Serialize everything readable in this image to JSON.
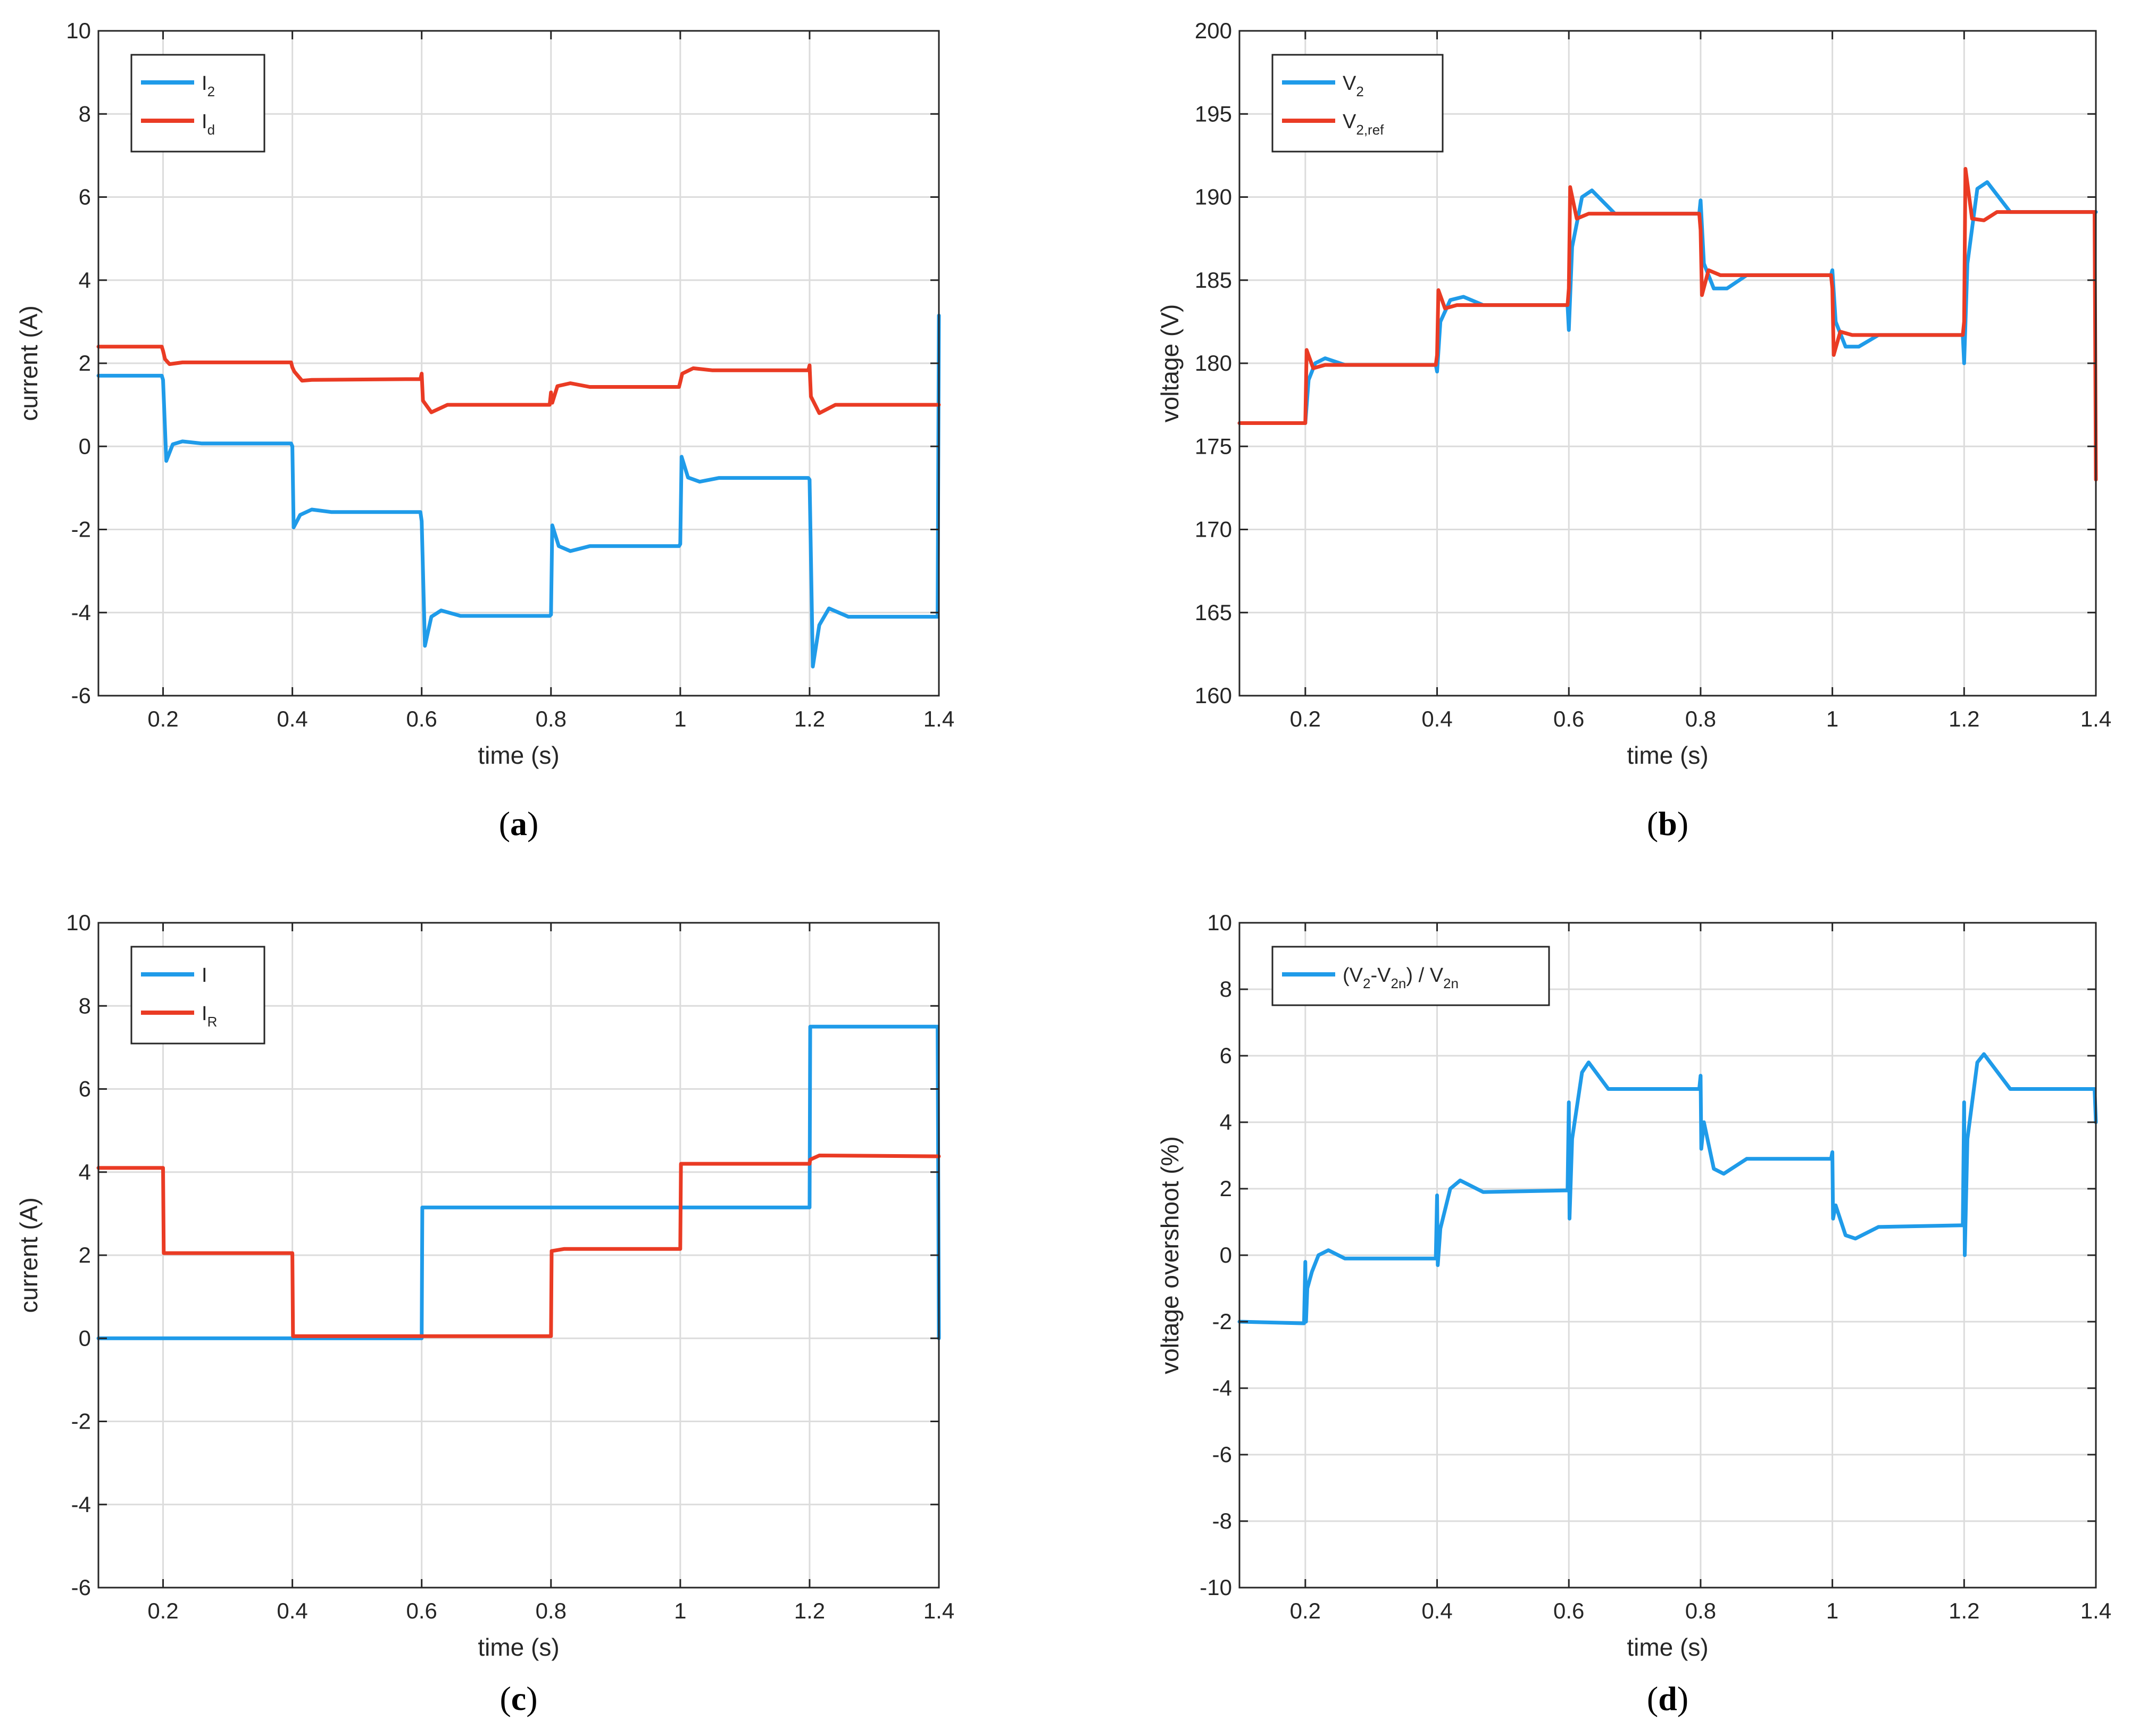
{
  "colors": {
    "blue": "#1f9be9",
    "red": "#ea3b24"
  },
  "chart_data": [
    {
      "id": "a",
      "type": "line",
      "panel_label": {
        "open": "(",
        "letter": "a",
        "close": ")"
      },
      "xlabel": "time (s)",
      "ylabel": "current (A)",
      "xlim": [
        0.1,
        1.4
      ],
      "ylim": [
        -6,
        10
      ],
      "xticks": [
        0.2,
        0.4,
        0.6,
        0.8,
        1,
        1.2,
        1.4
      ],
      "xtick_labels": [
        "0.2",
        "0.4",
        "0.6",
        "0.8",
        "1",
        "1.2",
        "1.4"
      ],
      "yticks": [
        -6,
        -4,
        -2,
        0,
        2,
        4,
        6,
        8,
        10
      ],
      "ytick_labels": [
        "-6",
        "-4",
        "-2",
        "0",
        "2",
        "4",
        "6",
        "8",
        "10"
      ],
      "grid": true,
      "legend_position": "top-left",
      "series": [
        {
          "name": "I2",
          "label": "I",
          "sub": "2",
          "color": "blue",
          "points": [
            [
              0.1,
              1.7
            ],
            [
              0.198,
              1.7
            ],
            [
              0.2,
              1.6
            ],
            [
              0.205,
              -0.35
            ],
            [
              0.215,
              0.05
            ],
            [
              0.23,
              0.12
            ],
            [
              0.26,
              0.07
            ],
            [
              0.398,
              0.07
            ],
            [
              0.4,
              0.0
            ],
            [
              0.402,
              -1.95
            ],
            [
              0.412,
              -1.65
            ],
            [
              0.43,
              -1.52
            ],
            [
              0.46,
              -1.58
            ],
            [
              0.598,
              -1.58
            ],
            [
              0.6,
              -1.8
            ],
            [
              0.605,
              -4.8
            ],
            [
              0.615,
              -4.1
            ],
            [
              0.63,
              -3.95
            ],
            [
              0.66,
              -4.08
            ],
            [
              0.798,
              -4.08
            ],
            [
              0.8,
              -4.05
            ],
            [
              0.802,
              -1.9
            ],
            [
              0.812,
              -2.4
            ],
            [
              0.83,
              -2.52
            ],
            [
              0.86,
              -2.4
            ],
            [
              0.998,
              -2.4
            ],
            [
              1.0,
              -2.35
            ],
            [
              1.002,
              -0.25
            ],
            [
              1.012,
              -0.75
            ],
            [
              1.03,
              -0.85
            ],
            [
              1.06,
              -0.76
            ],
            [
              1.198,
              -0.76
            ],
            [
              1.2,
              -0.8
            ],
            [
              1.205,
              -5.3
            ],
            [
              1.215,
              -4.3
            ],
            [
              1.23,
              -3.9
            ],
            [
              1.26,
              -4.1
            ],
            [
              1.398,
              -4.1
            ],
            [
              1.4,
              3.15
            ]
          ]
        },
        {
          "name": "Id",
          "label": "I",
          "sub": "d",
          "color": "red",
          "points": [
            [
              0.1,
              2.4
            ],
            [
              0.198,
              2.4
            ],
            [
              0.2,
              2.3
            ],
            [
              0.203,
              2.1
            ],
            [
              0.21,
              1.98
            ],
            [
              0.23,
              2.02
            ],
            [
              0.398,
              2.02
            ],
            [
              0.4,
              1.9
            ],
            [
              0.403,
              1.8
            ],
            [
              0.415,
              1.58
            ],
            [
              0.43,
              1.6
            ],
            [
              0.598,
              1.62
            ],
            [
              0.6,
              1.75
            ],
            [
              0.602,
              1.1
            ],
            [
              0.615,
              0.82
            ],
            [
              0.64,
              1.0
            ],
            [
              0.798,
              1.0
            ],
            [
              0.8,
              1.3
            ],
            [
              0.802,
              1.05
            ],
            [
              0.81,
              1.45
            ],
            [
              0.83,
              1.52
            ],
            [
              0.86,
              1.43
            ],
            [
              0.998,
              1.43
            ],
            [
              1.0,
              1.55
            ],
            [
              1.003,
              1.75
            ],
            [
              1.02,
              1.88
            ],
            [
              1.05,
              1.83
            ],
            [
              1.198,
              1.83
            ],
            [
              1.2,
              1.95
            ],
            [
              1.202,
              1.2
            ],
            [
              1.215,
              0.8
            ],
            [
              1.24,
              1.0
            ],
            [
              1.4,
              1.0
            ]
          ]
        }
      ]
    },
    {
      "id": "b",
      "type": "line",
      "panel_label": {
        "open": "(",
        "letter": "b",
        "close": ")"
      },
      "xlabel": "time (s)",
      "ylabel": "voltage (V)",
      "xlim": [
        0.1,
        1.4
      ],
      "ylim": [
        160,
        200
      ],
      "xticks": [
        0.2,
        0.4,
        0.6,
        0.8,
        1,
        1.2,
        1.4
      ],
      "xtick_labels": [
        "0.2",
        "0.4",
        "0.6",
        "0.8",
        "1",
        "1.2",
        "1.4"
      ],
      "yticks": [
        160,
        165,
        170,
        175,
        180,
        185,
        190,
        195,
        200
      ],
      "ytick_labels": [
        "160",
        "165",
        "170",
        "175",
        "180",
        "185",
        "190",
        "195",
        "200"
      ],
      "grid": true,
      "legend_position": "top-left",
      "series": [
        {
          "name": "V2",
          "label": "V",
          "sub": "2",
          "color": "blue",
          "points": [
            [
              0.1,
              176.4
            ],
            [
              0.198,
              176.4
            ],
            [
              0.2,
              176.4
            ],
            [
              0.205,
              179.0
            ],
            [
              0.215,
              180.0
            ],
            [
              0.23,
              180.3
            ],
            [
              0.26,
              179.9
            ],
            [
              0.398,
              179.9
            ],
            [
              0.4,
              179.5
            ],
            [
              0.405,
              182.5
            ],
            [
              0.42,
              183.8
            ],
            [
              0.44,
              184.0
            ],
            [
              0.47,
              183.5
            ],
            [
              0.598,
              183.5
            ],
            [
              0.6,
              182.0
            ],
            [
              0.605,
              187.0
            ],
            [
              0.62,
              190.0
            ],
            [
              0.635,
              190.4
            ],
            [
              0.67,
              189.0
            ],
            [
              0.798,
              189.0
            ],
            [
              0.8,
              189.8
            ],
            [
              0.805,
              186.0
            ],
            [
              0.82,
              184.5
            ],
            [
              0.84,
              184.5
            ],
            [
              0.87,
              185.3
            ],
            [
              0.998,
              185.3
            ],
            [
              1.0,
              185.6
            ],
            [
              1.005,
              182.5
            ],
            [
              1.02,
              181.0
            ],
            [
              1.04,
              181.0
            ],
            [
              1.07,
              181.7
            ],
            [
              1.198,
              181.7
            ],
            [
              1.2,
              180.0
            ],
            [
              1.205,
              186.0
            ],
            [
              1.22,
              190.5
            ],
            [
              1.235,
              190.9
            ],
            [
              1.27,
              189.1
            ],
            [
              1.4,
              189.1
            ]
          ]
        },
        {
          "name": "V2ref",
          "label": "V",
          "sub": "2,ref",
          "color": "red",
          "points": [
            [
              0.1,
              176.4
            ],
            [
              0.198,
              176.4
            ],
            [
              0.2,
              176.4
            ],
            [
              0.202,
              180.8
            ],
            [
              0.212,
              179.7
            ],
            [
              0.23,
              179.9
            ],
            [
              0.398,
              179.9
            ],
            [
              0.4,
              180.5
            ],
            [
              0.402,
              184.4
            ],
            [
              0.412,
              183.3
            ],
            [
              0.43,
              183.5
            ],
            [
              0.598,
              183.5
            ],
            [
              0.6,
              184.5
            ],
            [
              0.602,
              190.6
            ],
            [
              0.612,
              188.7
            ],
            [
              0.63,
              189.0
            ],
            [
              0.798,
              189.0
            ],
            [
              0.8,
              188.0
            ],
            [
              0.802,
              184.1
            ],
            [
              0.812,
              185.6
            ],
            [
              0.83,
              185.3
            ],
            [
              0.998,
              185.3
            ],
            [
              1.0,
              184.5
            ],
            [
              1.002,
              180.5
            ],
            [
              1.012,
              181.9
            ],
            [
              1.03,
              181.7
            ],
            [
              1.198,
              181.7
            ],
            [
              1.2,
              182.5
            ],
            [
              1.202,
              191.7
            ],
            [
              1.212,
              188.7
            ],
            [
              1.23,
              188.6
            ],
            [
              1.25,
              189.1
            ],
            [
              1.398,
              189.1
            ],
            [
              1.4,
              173.0
            ]
          ]
        }
      ]
    },
    {
      "id": "c",
      "type": "line",
      "panel_label": {
        "open": "(",
        "letter": "c",
        "close": ")"
      },
      "xlabel": "time (s)",
      "ylabel": "current (A)",
      "xlim": [
        0.1,
        1.4
      ],
      "ylim": [
        -6,
        10
      ],
      "xticks": [
        0.2,
        0.4,
        0.6,
        0.8,
        1,
        1.2,
        1.4
      ],
      "xtick_labels": [
        "0.2",
        "0.4",
        "0.6",
        "0.8",
        "1",
        "1.2",
        "1.4"
      ],
      "yticks": [
        -6,
        -4,
        -2,
        0,
        2,
        4,
        6,
        8,
        10
      ],
      "ytick_labels": [
        "-6",
        "-4",
        "-2",
        "0",
        "2",
        "4",
        "6",
        "8",
        "10"
      ],
      "grid": true,
      "legend_position": "top-left",
      "series": [
        {
          "name": "I",
          "label": "I",
          "sub": "",
          "color": "blue",
          "points": [
            [
              0.1,
              0.0
            ],
            [
              0.6,
              0.0
            ],
            [
              0.601,
              3.15
            ],
            [
              1.2,
              3.15
            ],
            [
              1.201,
              7.5
            ],
            [
              1.398,
              7.5
            ],
            [
              1.4,
              0.0
            ]
          ]
        },
        {
          "name": "IR",
          "label": "I",
          "sub": "R",
          "color": "red",
          "points": [
            [
              0.1,
              4.1
            ],
            [
              0.2,
              4.1
            ],
            [
              0.201,
              2.05
            ],
            [
              0.4,
              2.05
            ],
            [
              0.401,
              0.05
            ],
            [
              0.8,
              0.05
            ],
            [
              0.801,
              2.1
            ],
            [
              0.82,
              2.15
            ],
            [
              1.0,
              2.15
            ],
            [
              1.001,
              4.2
            ],
            [
              1.02,
              4.2
            ],
            [
              1.2,
              4.2
            ],
            [
              1.201,
              4.3
            ],
            [
              1.215,
              4.4
            ],
            [
              1.4,
              4.38
            ]
          ]
        }
      ]
    },
    {
      "id": "d",
      "type": "line",
      "panel_label": {
        "open": "(",
        "letter": "d",
        "close": ")"
      },
      "xlabel": "time (s)",
      "ylabel": "voltage overshoot (%)",
      "xlim": [
        0.1,
        1.4
      ],
      "ylim": [
        -10,
        10
      ],
      "xticks": [
        0.2,
        0.4,
        0.6,
        0.8,
        1,
        1.2,
        1.4
      ],
      "xtick_labels": [
        "0.2",
        "0.4",
        "0.6",
        "0.8",
        "1",
        "1.2",
        "1.4"
      ],
      "yticks": [
        -10,
        -8,
        -6,
        -4,
        -2,
        0,
        2,
        4,
        6,
        8,
        10
      ],
      "ytick_labels": [
        "-10",
        "-8",
        "-6",
        "-4",
        "-2",
        "0",
        "2",
        "4",
        "6",
        "8",
        "10"
      ],
      "grid": true,
      "legend_position": "top-left",
      "series": [
        {
          "name": "overshoot",
          "label": "(V",
          "sub": "2",
          "label2": "-V",
          "sub2": "2n",
          "label3": ") / V",
          "sub3": "2n",
          "color": "blue",
          "points": [
            [
              0.1,
              -2.0
            ],
            [
              0.198,
              -2.05
            ],
            [
              0.2,
              -0.2
            ],
            [
              0.201,
              -2.0
            ],
            [
              0.203,
              -1.0
            ],
            [
              0.21,
              -0.5
            ],
            [
              0.22,
              0.0
            ],
            [
              0.235,
              0.15
            ],
            [
              0.26,
              -0.1
            ],
            [
              0.398,
              -0.1
            ],
            [
              0.4,
              1.8
            ],
            [
              0.401,
              -0.3
            ],
            [
              0.405,
              0.8
            ],
            [
              0.42,
              2.0
            ],
            [
              0.435,
              2.25
            ],
            [
              0.47,
              1.9
            ],
            [
              0.598,
              1.95
            ],
            [
              0.6,
              4.6
            ],
            [
              0.601,
              1.1
            ],
            [
              0.605,
              3.5
            ],
            [
              0.62,
              5.5
            ],
            [
              0.63,
              5.8
            ],
            [
              0.66,
              5.0
            ],
            [
              0.798,
              5.0
            ],
            [
              0.8,
              5.4
            ],
            [
              0.801,
              3.2
            ],
            [
              0.805,
              4.0
            ],
            [
              0.82,
              2.6
            ],
            [
              0.835,
              2.45
            ],
            [
              0.87,
              2.9
            ],
            [
              0.998,
              2.9
            ],
            [
              1.0,
              3.1
            ],
            [
              1.001,
              1.1
            ],
            [
              1.005,
              1.5
            ],
            [
              1.02,
              0.6
            ],
            [
              1.035,
              0.5
            ],
            [
              1.07,
              0.85
            ],
            [
              1.198,
              0.9
            ],
            [
              1.2,
              4.6
            ],
            [
              1.201,
              0.0
            ],
            [
              1.205,
              3.5
            ],
            [
              1.22,
              5.8
            ],
            [
              1.23,
              6.05
            ],
            [
              1.27,
              5.0
            ],
            [
              1.398,
              5.0
            ],
            [
              1.4,
              4.0
            ]
          ]
        }
      ]
    }
  ]
}
